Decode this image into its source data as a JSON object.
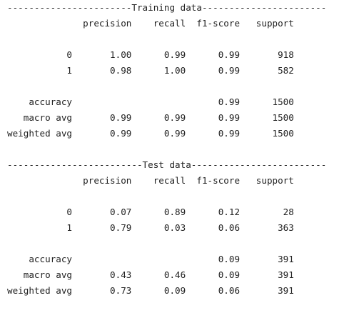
{
  "output_lines": [
    "-----------------------Training data-----------------------",
    "              precision    recall  f1-score   support",
    "",
    "           0       1.00      0.99      0.99       918",
    "           1       0.98      1.00      0.99       582",
    "",
    "    accuracy                           0.99      1500",
    "   macro avg       0.99      0.99      0.99      1500",
    "weighted avg       0.99      0.99      0.99      1500",
    "",
    "-------------------------Test data-------------------------",
    "              precision    recall  f1-score   support",
    "",
    "           0       0.07      0.89      0.12        28",
    "           1       0.79      0.03      0.06       363",
    "",
    "    accuracy                           0.09       391",
    "   macro avg       0.43      0.46      0.09       391",
    "weighted avg       0.73      0.09      0.06       391"
  ]
}
